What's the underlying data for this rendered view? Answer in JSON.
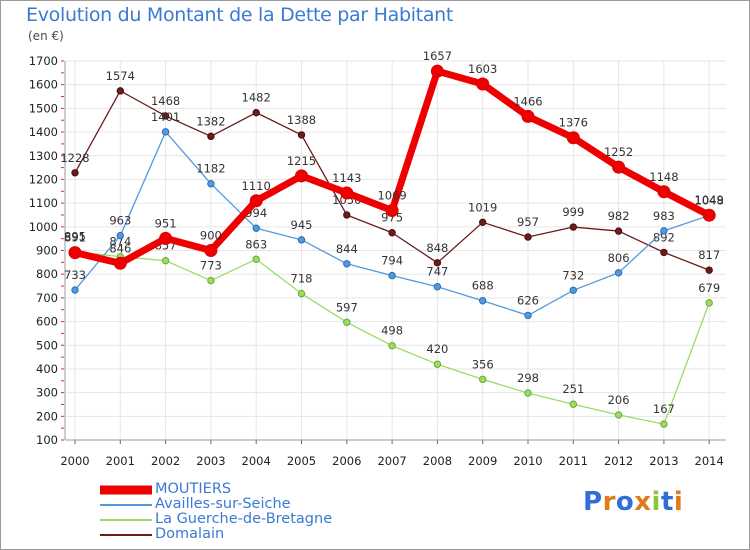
{
  "chart_data": {
    "type": "line",
    "title": "Evolution du Montant de la Dette par Habitant",
    "subtitle": "(en €)",
    "xlabel": "",
    "ylabel": "",
    "ylim": [
      100,
      1700
    ],
    "yticks": [
      100,
      200,
      300,
      400,
      500,
      600,
      700,
      800,
      900,
      1000,
      1100,
      1200,
      1300,
      1400,
      1500,
      1600,
      1700
    ],
    "x": [
      "2000",
      "2001",
      "2002",
      "2003",
      "2004",
      "2005",
      "2006",
      "2007",
      "2008",
      "2009",
      "2010",
      "2011",
      "2012",
      "2013",
      "2014"
    ],
    "grid": true,
    "legend_position": "bottom-left",
    "series": [
      {
        "name": "Domalain",
        "color": "#6b1c1c",
        "values": [
          1228,
          1574,
          1468,
          1382,
          1482,
          1388,
          1050,
          975,
          848,
          1019,
          957,
          999,
          982,
          892,
          817
        ]
      },
      {
        "name": "La Guerche-de-Bretagne",
        "color": "#99dd66",
        "values": [
          895,
          874,
          857,
          773,
          863,
          718,
          597,
          498,
          420,
          356,
          298,
          251,
          206,
          167,
          679
        ]
      },
      {
        "name": "Availles-sur-Seiche",
        "color": "#5599dd",
        "values": [
          733,
          963,
          1401,
          1182,
          994,
          945,
          844,
          794,
          747,
          688,
          626,
          732,
          806,
          983,
          1048
        ]
      },
      {
        "name": "MOUTIERS",
        "color": "#ee0000",
        "values": [
          891,
          846,
          951,
          900,
          1110,
          1215,
          1143,
          1069,
          1657,
          1603,
          1466,
          1376,
          1252,
          1148,
          1049
        ]
      }
    ]
  },
  "legend": [
    {
      "name": "MOUTIERS",
      "color": "#ee0000"
    },
    {
      "name": "Availles-sur-Seiche",
      "color": "#5599dd"
    },
    {
      "name": "La Guerche-de-Bretagne",
      "color": "#99dd66"
    },
    {
      "name": "Domalain",
      "color": "#6b1c1c"
    }
  ],
  "logo": {
    "text": "Proxiti"
  }
}
